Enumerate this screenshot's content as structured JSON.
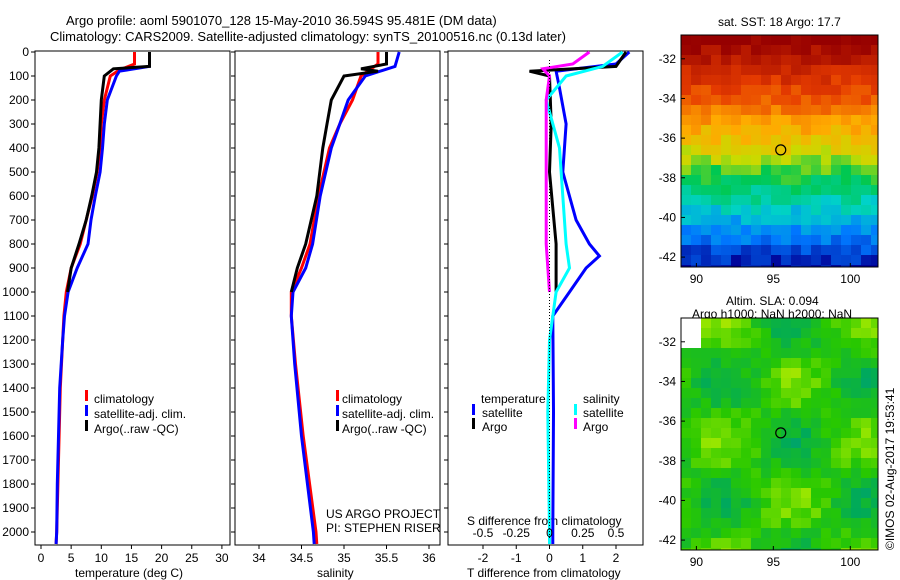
{
  "header": {
    "title_line1": "Argo profile: aoml 5901070_128 15-May-2010 36.594S 95.481E (DM data)",
    "title_line2": "Climatology: CARS2009. Satellite-adjusted climatology: synTS_20100516.nc (0.13d later)"
  },
  "colors": {
    "climatology": "#ff0000",
    "satellite": "#0000ff",
    "argo": "#000000",
    "sal_satellite": "#00ffff",
    "sal_argo": "#ff00ff"
  },
  "chart_data": [
    {
      "type": "line",
      "xlabel": "temperature (deg C)",
      "ylabel": "",
      "xlim": [
        -2,
        31
      ],
      "ylim": [
        2060,
        0
      ],
      "xticks": [
        0,
        5,
        10,
        15,
        20,
        25,
        30
      ],
      "yticks": [
        0,
        100,
        200,
        300,
        400,
        500,
        600,
        700,
        800,
        900,
        1000,
        1100,
        1200,
        1300,
        1400,
        1500,
        1600,
        1700,
        1800,
        1900,
        2000
      ],
      "legend": [
        "climatology",
        "satellite-adj. clim.",
        "Argo(..raw -QC)"
      ],
      "series": [
        {
          "name": "climatology",
          "color": "#ff0000",
          "depth": [
            0,
            50,
            75,
            100,
            200,
            300,
            400,
            500,
            600,
            700,
            800,
            900,
            1000,
            1100,
            1200,
            1400,
            1600,
            1800,
            2000,
            2050
          ],
          "values": [
            15.5,
            15.5,
            13,
            11.5,
            10.5,
            10,
            9.8,
            9.3,
            8.5,
            7.5,
            6.5,
            5,
            4.2,
            3.8,
            3.6,
            3.2,
            3,
            2.8,
            2.6,
            2.5
          ]
        },
        {
          "name": "satellite-adj. clim.",
          "color": "#0000ff",
          "depth": [
            0,
            60,
            80,
            100,
            200,
            300,
            400,
            500,
            600,
            700,
            800,
            900,
            1000,
            1100,
            1200,
            1400,
            1600,
            1800,
            2000,
            2050
          ],
          "values": [
            18,
            18,
            13,
            12.5,
            11,
            10.5,
            10.2,
            9.8,
            9,
            8.3,
            7.8,
            6,
            4.5,
            3.9,
            3.6,
            3.1,
            2.9,
            2.7,
            2.6,
            2.5
          ]
        },
        {
          "name": "Argo(..raw -QC)",
          "color": "#000000",
          "depth": [
            0,
            60,
            70,
            100,
            200,
            300,
            400,
            500,
            600,
            700,
            800,
            900,
            1000
          ],
          "values": [
            18,
            18,
            12,
            10.5,
            10,
            9.8,
            9.6,
            9.2,
            8.4,
            7.5,
            6.3,
            5,
            4.4
          ]
        }
      ]
    },
    {
      "type": "line",
      "xlabel": "salinity",
      "xlim": [
        33.7,
        36.1
      ],
      "ylim": [
        2060,
        0
      ],
      "xticks": [
        34,
        34.5,
        35,
        35.5,
        36
      ],
      "legend": [
        "climatology",
        "satellite-adj. clim.",
        "Argo(..raw -QC)"
      ],
      "annotation": [
        "US ARGO PROJECT",
        "PI: STEPHEN RISER"
      ],
      "series": [
        {
          "name": "climatology",
          "color": "#ff0000",
          "depth": [
            0,
            50,
            100,
            200,
            300,
            400,
            600,
            800,
            900,
            1000,
            1100,
            1300,
            1600,
            2000,
            2050
          ],
          "values": [
            35.4,
            35.4,
            35.2,
            35.1,
            34.95,
            34.83,
            34.7,
            34.6,
            34.5,
            34.38,
            34.38,
            34.43,
            34.52,
            34.67,
            34.68
          ]
        },
        {
          "name": "satellite-adj. clim.",
          "color": "#0000ff",
          "depth": [
            0,
            60,
            100,
            200,
            300,
            400,
            600,
            800,
            900,
            1000,
            1100,
            1300,
            1600,
            2000,
            2050
          ],
          "values": [
            35.65,
            35.6,
            35.25,
            35.05,
            34.95,
            34.85,
            34.72,
            34.63,
            34.55,
            34.4,
            34.38,
            34.42,
            34.5,
            34.64,
            34.65
          ]
        },
        {
          "name": "Argo(..raw -QC)",
          "color": "#000000",
          "depth": [
            0,
            50,
            70,
            80,
            100,
            200,
            300,
            400,
            600,
            800,
            900,
            1000
          ],
          "values": [
            35.5,
            35.5,
            35.2,
            35.4,
            35.0,
            34.85,
            34.8,
            34.75,
            34.68,
            34.55,
            34.45,
            34.38
          ]
        }
      ]
    },
    {
      "type": "line",
      "xlabel": "T difference from climatology",
      "x2label": "S difference from climatology",
      "xlim": [
        -2.7,
        2.9
      ],
      "ylim": [
        2060,
        0
      ],
      "xticks": [
        -2,
        -1,
        0,
        1,
        2
      ],
      "x2ticks": [
        -0.5,
        -0.25,
        0,
        0.25,
        0.5
      ],
      "legend_temperature": {
        "title": "temperature",
        "items": [
          "satellite",
          "Argo"
        ]
      },
      "legend_salinity": {
        "title": "salinity",
        "items": [
          "satellite",
          "Argo"
        ]
      },
      "series": [
        {
          "name": "temperature satellite",
          "color": "#0000ff",
          "units": "T",
          "depth": [
            0,
            50,
            80,
            150,
            300,
            500,
            700,
            800,
            850,
            900,
            1000,
            1100,
            1500,
            2000,
            2050
          ],
          "values": [
            2.4,
            2.0,
            0.2,
            0.3,
            0.5,
            0.4,
            0.8,
            1.2,
            1.5,
            1.1,
            0.6,
            0.1,
            0.12,
            0.1,
            0.1
          ]
        },
        {
          "name": "temperature Argo",
          "color": "#000000",
          "units": "T",
          "depth": [
            0,
            60,
            80,
            100,
            300,
            500,
            800,
            1000
          ],
          "values": [
            2.3,
            2.0,
            -0.6,
            0.0,
            0.05,
            0.0,
            0.2,
            0.2
          ]
        },
        {
          "name": "salinity satellite",
          "color": "#00ffff",
          "units": "S",
          "depth": [
            0,
            60,
            100,
            200,
            400,
            600,
            800,
            900,
            1000,
            1200,
            1500,
            2000,
            2050
          ],
          "values": [
            0.55,
            0.4,
            0.125,
            -0.025,
            0.075,
            0.1,
            0.125,
            0.15,
            0.05,
            0.0,
            -0.0125,
            0.0,
            0.0
          ]
        },
        {
          "name": "salinity Argo",
          "color": "#ff00ff",
          "units": "S",
          "depth": [
            0,
            50,
            70,
            100,
            200,
            500,
            800,
            1000
          ],
          "values": [
            0.3,
            0.175,
            -0.05,
            0.0,
            -0.025,
            -0.025,
            -0.025,
            0.0
          ]
        }
      ]
    }
  ],
  "maps": [
    {
      "title": "sat. SST: 18 Argo: 17.7",
      "yticks": [
        "-32",
        "-34",
        "-36",
        "-38",
        "-40",
        "-42"
      ],
      "xticks": [
        "90",
        "95",
        "100"
      ],
      "kind": "sst"
    },
    {
      "title_line1": "Altim. SLA: 0.094",
      "title_line2": "Argo h1000: NaN h2000: NaN",
      "yticks": [
        "-32",
        "-34",
        "-36",
        "-38",
        "-40",
        "-42"
      ],
      "xticks": [
        "90",
        "95",
        "100"
      ],
      "kind": "sla"
    }
  ],
  "float_position": {
    "lon": 95.481,
    "lat": -36.594
  },
  "credit": "©IMOS 02-Aug-2017 19:53:41"
}
